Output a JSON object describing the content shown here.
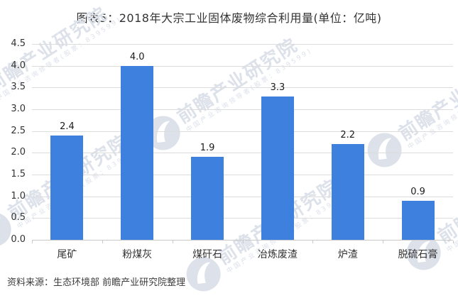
{
  "title": "图表5：2018年大宗工业固体废物综合利用量(单位：亿吨)",
  "source": "资料来源：生态环境部 前瞻产业研究院整理",
  "watermark": {
    "brand_text": "前瞻产业研究院",
    "sub_text": "中国产业咨询领导者(股票：839599)"
  },
  "colors": {
    "bar": "#3E80DD",
    "gridline": "#DCDCDC",
    "axis": "#C9C9C9",
    "text": "#333333",
    "value_label": "#1B1B1B",
    "watermark": "#DDE1EA"
  },
  "chart_data": {
    "type": "bar",
    "title": "图表5：2018年大宗工业固体废物综合利用量(单位：亿吨)",
    "unit": "亿吨",
    "categories": [
      "尾矿",
      "粉煤灰",
      "煤矸石",
      "冶炼废渣",
      "炉渣",
      "脱硫石膏"
    ],
    "values": [
      2.4,
      4.0,
      1.9,
      3.3,
      2.2,
      0.9
    ],
    "xlabel": "",
    "ylabel": "",
    "ylim": [
      0,
      4.5
    ],
    "ytick_step": 0.5,
    "grid": true,
    "legend_position": "none",
    "value_labels_shown": true
  }
}
